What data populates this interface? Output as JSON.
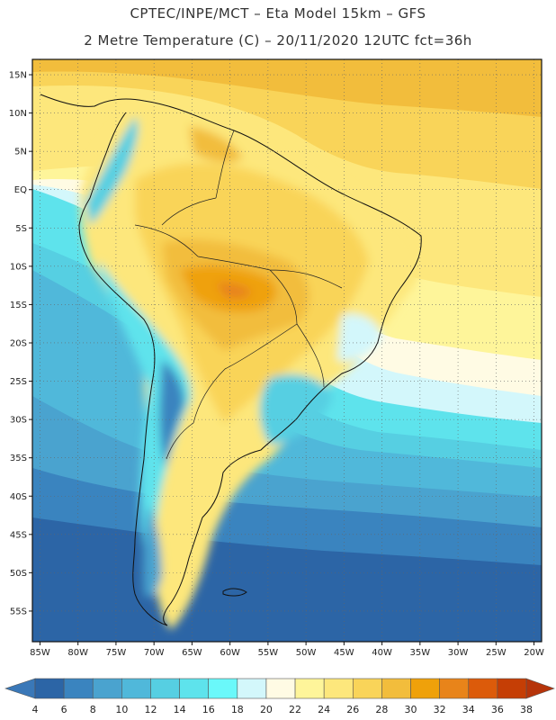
{
  "header": {
    "line1": "CPTEC/INPE/MCT –  Eta Model 15km – GFS",
    "line2": "2 Metre Temperature (C) – 20/11/2020 12UTC fct=36h"
  },
  "map": {
    "lon_min": -86,
    "lon_max": -19,
    "lat_min": -59,
    "lat_max": 17,
    "lon_ticks": [
      {
        "v": -85,
        "label": "85W"
      },
      {
        "v": -80,
        "label": "80W"
      },
      {
        "v": -75,
        "label": "75W"
      },
      {
        "v": -70,
        "label": "70W"
      },
      {
        "v": -65,
        "label": "65W"
      },
      {
        "v": -60,
        "label": "60W"
      },
      {
        "v": -55,
        "label": "55W"
      },
      {
        "v": -50,
        "label": "50W"
      },
      {
        "v": -45,
        "label": "45W"
      },
      {
        "v": -40,
        "label": "40W"
      },
      {
        "v": -35,
        "label": "35W"
      },
      {
        "v": -30,
        "label": "30W"
      },
      {
        "v": -25,
        "label": "25W"
      },
      {
        "v": -20,
        "label": "20W"
      }
    ],
    "lat_ticks": [
      {
        "v": 15,
        "label": "15N"
      },
      {
        "v": 10,
        "label": "10N"
      },
      {
        "v": 5,
        "label": "5N"
      },
      {
        "v": 0,
        "label": "EQ"
      },
      {
        "v": -5,
        "label": "5S"
      },
      {
        "v": -10,
        "label": "10S"
      },
      {
        "v": -15,
        "label": "15S"
      },
      {
        "v": -20,
        "label": "20S"
      },
      {
        "v": -25,
        "label": "25S"
      },
      {
        "v": -30,
        "label": "30S"
      },
      {
        "v": -35,
        "label": "35S"
      },
      {
        "v": -40,
        "label": "40S"
      },
      {
        "v": -45,
        "label": "45S"
      },
      {
        "v": -50,
        "label": "50S"
      },
      {
        "v": -55,
        "label": "55S"
      }
    ]
  },
  "colorbar": {
    "labels": [
      "4",
      "6",
      "8",
      "10",
      "12",
      "14",
      "16",
      "18",
      "20",
      "22",
      "24",
      "26",
      "28",
      "30",
      "32",
      "34",
      "36",
      "38"
    ],
    "colors": [
      "#2c65a6",
      "#3a84bf",
      "#4aa3cf",
      "#50b8da",
      "#56cfe2",
      "#5ee3ec",
      "#6af8fa",
      "#d3f7fb",
      "#fffbe4",
      "#fef59a",
      "#fde77c",
      "#f9d459",
      "#f2bd3c",
      "#efa10a",
      "#e8841a",
      "#dc5b0a",
      "#c53e05"
    ],
    "low_color": "#3a78b8",
    "high_color": "#b6340a"
  }
}
